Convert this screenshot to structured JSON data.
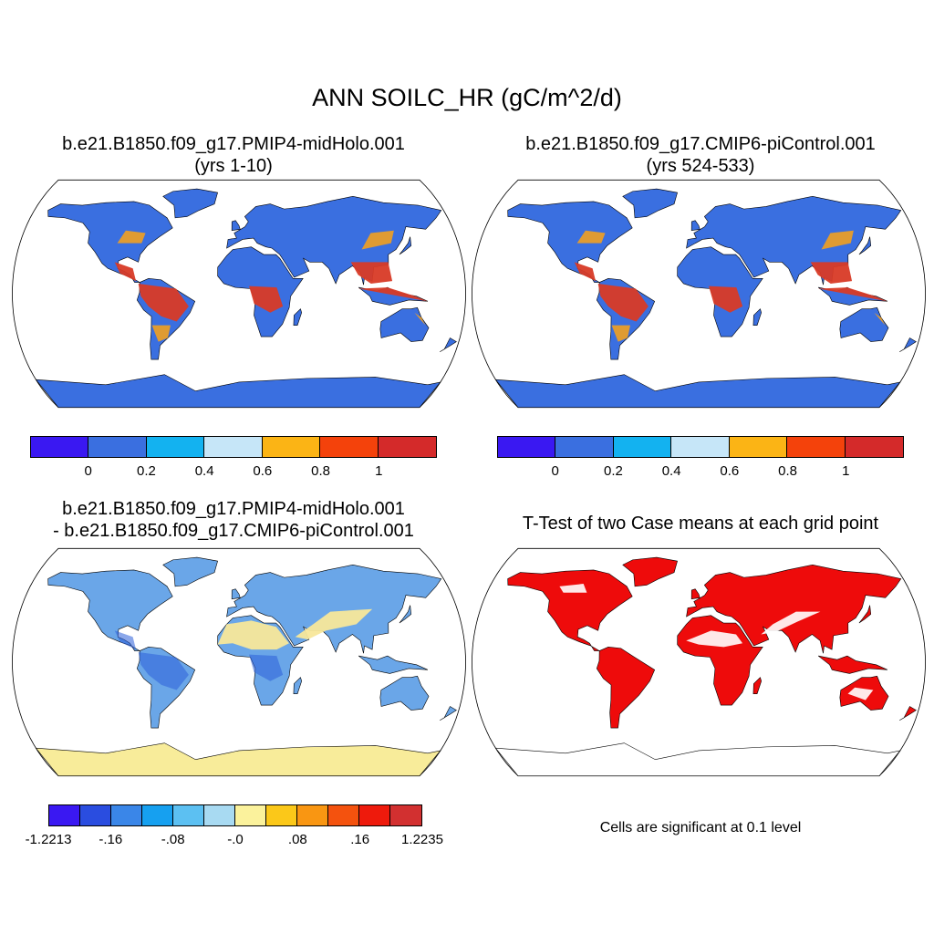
{
  "main_title": "ANN SOILC_HR (gC/m^2/d)",
  "panels": [
    {
      "title_line1": "b.e21.B1850.f09_g17.PMIP4-midHolo.001",
      "title_line2": "(yrs 1-10)",
      "ocean": "#ffffff",
      "land_base": "#3a6fe0",
      "tropics": "#d83a26",
      "mid": "#f2a020",
      "antarctica": "#3a6fe0"
    },
    {
      "title_line1": "b.e21.B1850.f09_g17.CMIP6-piControl.001",
      "title_line2": "(yrs 524-533)",
      "ocean": "#ffffff",
      "land_base": "#3a6fe0",
      "tropics": "#d83a26",
      "mid": "#f2a020",
      "antarctica": "#3a6fe0"
    },
    {
      "title_line1": "b.e21.B1850.f09_g17.PMIP4-midHolo.001",
      "title_line2": "- b.e21.B1850.f09_g17.CMIP6-piControl.001",
      "ocean": "#ffffff",
      "land_base": "#6aa6e8",
      "tropics": "#2c5fd8",
      "mid": "#f8e79a",
      "antarctica": "#f8ec9a"
    },
    {
      "title_line1": "T-Test of two Case means at each grid point",
      "title_line2": "",
      "ocean": "#ffffff",
      "land_base": "#ee0b0b",
      "tropics": "#ee0b0b",
      "mid": "#ee0b0b",
      "antarctica": "#ffffff"
    }
  ],
  "colorbar_top": {
    "colors": [
      "#3a18f2",
      "#3a6fe0",
      "#13b2f0",
      "#c6e6f8",
      "#fbb415",
      "#f4420b",
      "#d42a2a"
    ],
    "labels": [
      "0",
      "0.2",
      "0.4",
      "0.6",
      "0.8",
      "1"
    ]
  },
  "colorbar_diff": {
    "colors": [
      "#3a18f2",
      "#2a4de0",
      "#3a86e8",
      "#16a0f0",
      "#5cc0f2",
      "#a8daf2",
      "#fbf29c",
      "#fbc819",
      "#f99612",
      "#f4520e",
      "#ee1a0c",
      "#d23030"
    ],
    "labels": [
      "-1.2213",
      "-.16",
      "-.08",
      "-.0",
      ".08",
      ".16",
      "1.2235"
    ]
  },
  "ttest_note": "Cells are significant at 0.1 level"
}
